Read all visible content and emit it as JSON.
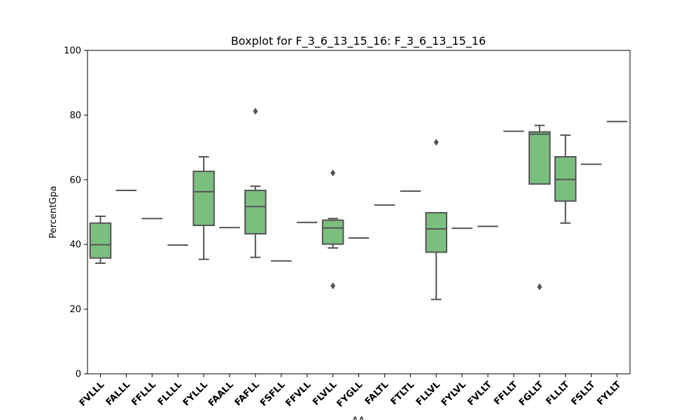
{
  "chart_data": {
    "type": "boxplot",
    "title": "Boxplot for F_3_6_13_15_16: F_3_6_13_15_16",
    "xlabel": "AA",
    "ylabel": "PercentGpa",
    "ylim": [
      0,
      100
    ],
    "yticks": [
      "0",
      "20",
      "40",
      "60",
      "80",
      "100"
    ],
    "grid": false,
    "colors": {
      "box_fill": "#7bbf7f",
      "box_edge": "#555555",
      "outlier": "#555555"
    },
    "categories": [
      "FVLLL",
      "FALLL",
      "FFLLL",
      "FLLLL",
      "FYLLL",
      "FAALL",
      "FAFLL",
      "FSFLL",
      "FFVLL",
      "FLVLL",
      "FYGLL",
      "FALTL",
      "FTLTL",
      "FLLVL",
      "FYLVL",
      "FVLLT",
      "FFLLT",
      "FGLLT",
      "FLLLT",
      "FSLLT",
      "FYLLT"
    ],
    "boxes": [
      {
        "category": "FVLLL",
        "whisker_low": 34.2,
        "q1": 35.8,
        "median": 39.9,
        "q3": 46.6,
        "whisker_high": 48.7,
        "outliers": []
      },
      {
        "category": "FALLL",
        "whisker_low": 56.7,
        "q1": 56.7,
        "median": 56.7,
        "q3": 56.7,
        "whisker_high": 56.7,
        "outliers": []
      },
      {
        "category": "FFLLL",
        "whisker_low": 48.0,
        "q1": 48.0,
        "median": 48.0,
        "q3": 48.0,
        "whisker_high": 48.0,
        "outliers": []
      },
      {
        "category": "FLLLL",
        "whisker_low": 39.8,
        "q1": 39.8,
        "median": 39.8,
        "q3": 39.8,
        "whisker_high": 39.8,
        "outliers": []
      },
      {
        "category": "FYLLL",
        "whisker_low": 35.4,
        "q1": 45.9,
        "median": 56.3,
        "q3": 62.6,
        "whisker_high": 67.1,
        "outliers": []
      },
      {
        "category": "FAALL",
        "whisker_low": 45.2,
        "q1": 45.2,
        "median": 45.2,
        "q3": 45.2,
        "whisker_high": 45.2,
        "outliers": []
      },
      {
        "category": "FAFLL",
        "whisker_low": 36.0,
        "q1": 43.3,
        "median": 51.7,
        "q3": 56.7,
        "whisker_high": 58.0,
        "outliers": [
          81.2
        ]
      },
      {
        "category": "FSFLL",
        "whisker_low": 34.9,
        "q1": 34.9,
        "median": 34.9,
        "q3": 34.9,
        "whisker_high": 34.9,
        "outliers": []
      },
      {
        "category": "FFVLL",
        "whisker_low": 46.8,
        "q1": 46.8,
        "median": 46.8,
        "q3": 46.8,
        "whisker_high": 46.8,
        "outliers": []
      },
      {
        "category": "FLVLL",
        "whisker_low": 38.9,
        "q1": 40.1,
        "median": 45.1,
        "q3": 47.5,
        "whisker_high": 48.0,
        "outliers": [
          62.1,
          27.2
        ]
      },
      {
        "category": "FYGLL",
        "whisker_low": 42.0,
        "q1": 42.0,
        "median": 42.0,
        "q3": 42.0,
        "whisker_high": 42.0,
        "outliers": []
      },
      {
        "category": "FALTL",
        "whisker_low": 52.2,
        "q1": 52.2,
        "median": 52.2,
        "q3": 52.2,
        "whisker_high": 52.2,
        "outliers": []
      },
      {
        "category": "FTLTL",
        "whisker_low": 56.5,
        "q1": 56.5,
        "median": 56.5,
        "q3": 56.5,
        "whisker_high": 56.5,
        "outliers": []
      },
      {
        "category": "FLLVL",
        "whisker_low": 23.0,
        "q1": 37.6,
        "median": 44.8,
        "q3": 49.8,
        "whisker_high": 49.8,
        "outliers": [
          71.6
        ]
      },
      {
        "category": "FYLVL",
        "whisker_low": 45.0,
        "q1": 45.0,
        "median": 45.0,
        "q3": 45.0,
        "whisker_high": 45.0,
        "outliers": []
      },
      {
        "category": "FVLLT",
        "whisker_low": 45.6,
        "q1": 45.6,
        "median": 45.6,
        "q3": 45.6,
        "whisker_high": 45.6,
        "outliers": []
      },
      {
        "category": "FFLLT",
        "whisker_low": 75.0,
        "q1": 75.0,
        "median": 75.0,
        "q3": 75.0,
        "whisker_high": 75.0,
        "outliers": []
      },
      {
        "category": "FGLLT",
        "whisker_low": 58.7,
        "q1": 58.7,
        "median": 74.1,
        "q3": 74.8,
        "whisker_high": 76.8,
        "outliers": [
          26.9
        ]
      },
      {
        "category": "FLLLT",
        "whisker_low": 46.6,
        "q1": 53.4,
        "median": 60.1,
        "q3": 67.1,
        "whisker_high": 73.8,
        "outliers": []
      },
      {
        "category": "FSLLT",
        "whisker_low": 64.8,
        "q1": 64.8,
        "median": 64.8,
        "q3": 64.8,
        "whisker_high": 64.8,
        "outliers": []
      },
      {
        "category": "FYLLT",
        "whisker_low": 78.0,
        "q1": 78.0,
        "median": 78.0,
        "q3": 78.0,
        "whisker_high": 78.0,
        "outliers": []
      }
    ]
  }
}
